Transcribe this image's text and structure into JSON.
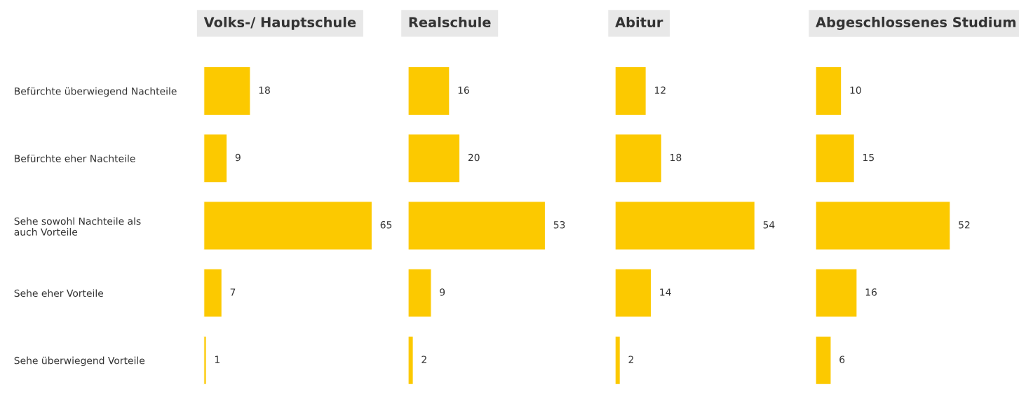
{
  "chart_data": [
    {
      "type": "bar",
      "orientation": "horizontal",
      "title": "Volks-/ Hauptschule",
      "categories": [
        "Befürchte überwiegend Nachteile",
        "Befürchte eher Nachteile",
        "Sehe sowohl Nachteile als\nauch Vorteile",
        "Sehe eher Vorteile",
        "Sehe überwiegend Vorteile"
      ],
      "values": [
        18,
        9,
        65,
        7,
        1
      ],
      "color": "#fcc900",
      "data_labels": true,
      "tick_labels": "y"
    },
    {
      "type": "bar",
      "orientation": "horizontal",
      "title": "Realschule",
      "values": [
        16,
        20,
        53,
        9,
        2
      ],
      "color": "#fcc900",
      "data_labels": true,
      "tick_labels": false
    },
    {
      "type": "bar",
      "orientation": "horizontal",
      "title": "Abitur",
      "values": [
        12,
        18,
        54,
        14,
        2
      ],
      "color": "#fcc900",
      "data_labels": true,
      "tick_labels": false
    },
    {
      "type": "bar",
      "orientation": "horizontal",
      "title": "Abgeschlossenes Studium",
      "values": [
        10,
        15,
        52,
        16,
        6
      ],
      "color": "#fcc900",
      "data_labels": true,
      "tick_labels": false
    }
  ]
}
